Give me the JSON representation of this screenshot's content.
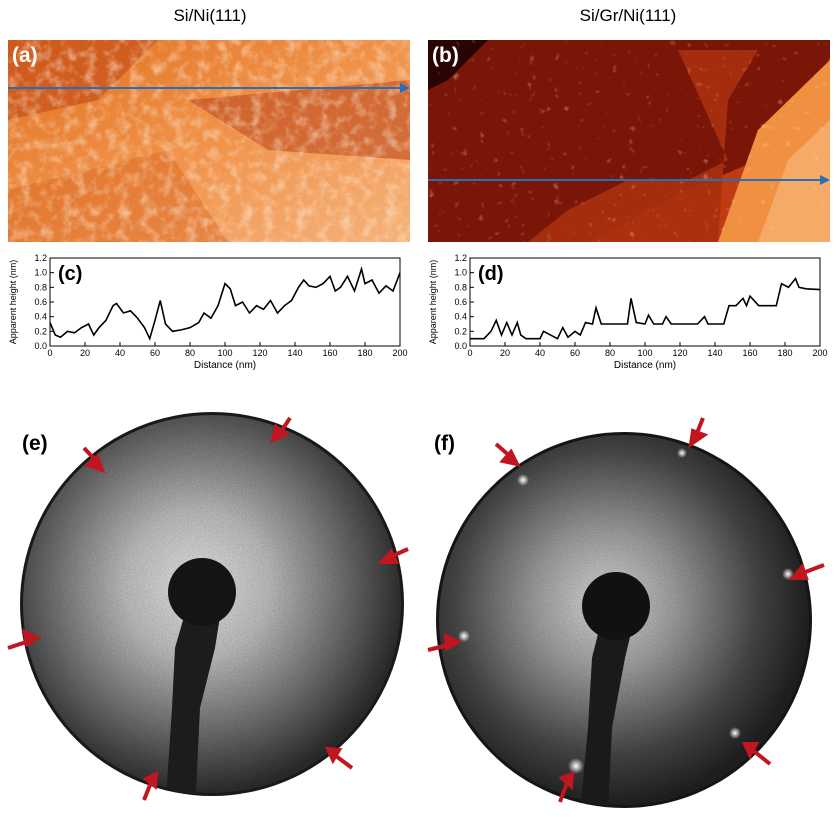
{
  "columns": [
    "Si/Ni(111)",
    "Si/Gr/Ni(111)"
  ],
  "panels": {
    "a": "(a)",
    "b": "(b)",
    "c": "(c)",
    "d": "(d)",
    "e": "(e)",
    "f": "(f)"
  },
  "colors": {
    "line_profile_marker": "#2a6fb5",
    "arrow": "#c0161f",
    "profile_line": "#000000"
  },
  "chart_data": [
    {
      "panel": "(c)",
      "type": "line",
      "xlabel": "Distance (nm)",
      "ylabel": "Apparent height (nm)",
      "xlim": [
        0,
        200
      ],
      "ylim": [
        0,
        1.2
      ],
      "xticks": [
        "0",
        "20",
        "40",
        "60",
        "80",
        "100",
        "120",
        "140",
        "160",
        "180",
        "200"
      ],
      "yticks": [
        "0.0",
        "0.2",
        "0.4",
        "0.6",
        "0.8",
        "1.0",
        "1.2"
      ],
      "x": [
        0,
        3,
        6,
        10,
        14,
        18,
        22,
        25,
        28,
        32,
        36,
        38,
        42,
        46,
        50,
        54,
        57,
        60,
        63,
        66,
        70,
        75,
        80,
        85,
        88,
        92,
        96,
        100,
        103,
        106,
        110,
        114,
        118,
        122,
        126,
        130,
        134,
        138,
        142,
        145,
        148,
        152,
        156,
        160,
        163,
        166,
        170,
        174,
        178,
        180,
        184,
        188,
        192,
        196,
        200
      ],
      "y": [
        0.32,
        0.15,
        0.12,
        0.2,
        0.18,
        0.25,
        0.3,
        0.15,
        0.25,
        0.35,
        0.55,
        0.58,
        0.45,
        0.48,
        0.38,
        0.25,
        0.1,
        0.35,
        0.62,
        0.3,
        0.2,
        0.22,
        0.25,
        0.32,
        0.45,
        0.38,
        0.55,
        0.85,
        0.78,
        0.55,
        0.6,
        0.45,
        0.55,
        0.5,
        0.62,
        0.45,
        0.55,
        0.62,
        0.8,
        0.9,
        0.82,
        0.8,
        0.85,
        0.95,
        0.75,
        0.8,
        0.95,
        0.75,
        1.05,
        0.85,
        0.9,
        0.72,
        0.82,
        0.75,
        1.0
      ]
    },
    {
      "panel": "(d)",
      "type": "line",
      "xlabel": "Distance (nm)",
      "ylabel": "Apparent height (nm)",
      "xlim": [
        0,
        200
      ],
      "ylim": [
        0,
        1.2
      ],
      "xticks": [
        "0",
        "20",
        "40",
        "60",
        "80",
        "100",
        "120",
        "140",
        "160",
        "180",
        "200"
      ],
      "yticks": [
        "0.0",
        "0.2",
        "0.4",
        "0.6",
        "0.8",
        "1.0",
        "1.2"
      ],
      "x": [
        0,
        8,
        12,
        15,
        18,
        21,
        24,
        27,
        29,
        32,
        40,
        42,
        50,
        53,
        56,
        60,
        63,
        66,
        70,
        72,
        75,
        90,
        92,
        95,
        100,
        102,
        105,
        110,
        112,
        115,
        130,
        134,
        136,
        145,
        148,
        152,
        156,
        158,
        160,
        165,
        175,
        178,
        182,
        186,
        188,
        192,
        200
      ],
      "y": [
        0.1,
        0.1,
        0.2,
        0.35,
        0.15,
        0.32,
        0.15,
        0.32,
        0.15,
        0.1,
        0.1,
        0.2,
        0.1,
        0.25,
        0.12,
        0.2,
        0.15,
        0.32,
        0.3,
        0.52,
        0.3,
        0.3,
        0.65,
        0.32,
        0.3,
        0.42,
        0.3,
        0.3,
        0.4,
        0.3,
        0.3,
        0.4,
        0.3,
        0.3,
        0.55,
        0.55,
        0.65,
        0.55,
        0.68,
        0.55,
        0.55,
        0.85,
        0.8,
        0.92,
        0.8,
        0.78,
        0.77
      ]
    }
  ]
}
